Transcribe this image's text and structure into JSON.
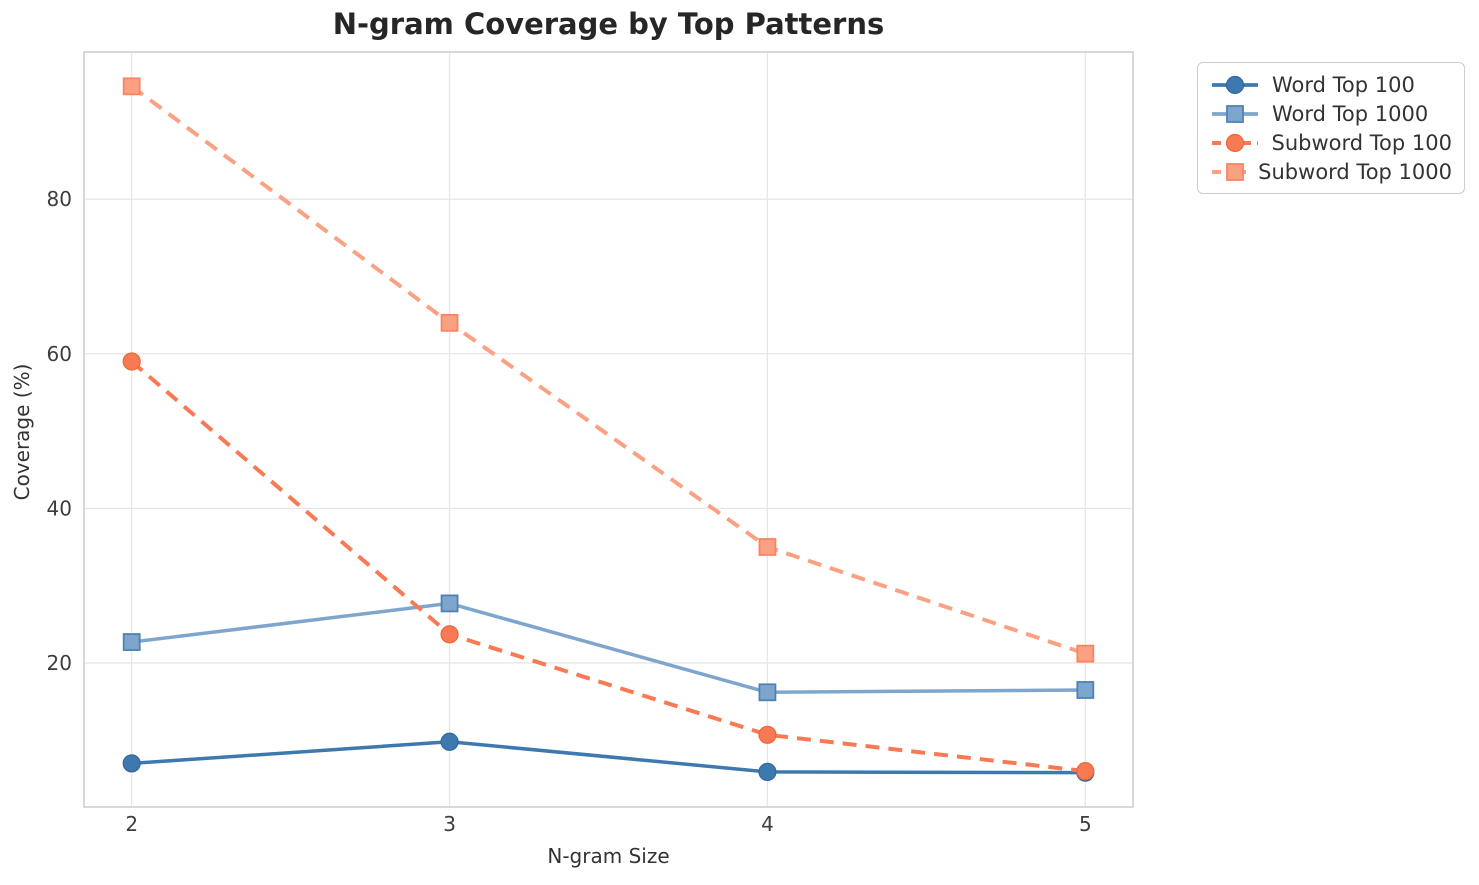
{
  "chart_data": {
    "type": "line",
    "title": "N-gram Coverage by Top Patterns",
    "xlabel": "N-gram Size",
    "ylabel": "Coverage (%)",
    "x": [
      2,
      3,
      4,
      5
    ],
    "x_tick_labels": [
      "2",
      "3",
      "4",
      "5"
    ],
    "y_ticks": [
      20,
      40,
      60,
      80
    ],
    "y_tick_labels": [
      "20",
      "40",
      "60",
      "80"
    ],
    "xlim": [
      1.85,
      5.15
    ],
    "ylim": [
      1.36,
      99.04
    ],
    "grid": true,
    "legend_position": "outside-upper-right",
    "series": [
      {
        "name": "Word Top 100",
        "values": [
          7.0,
          9.8,
          5.9,
          5.8
        ],
        "color": "#3d79ae",
        "marker_edge": "#34689a",
        "line_style": "solid",
        "marker": "circle"
      },
      {
        "name": "Word Top 1000",
        "values": [
          22.7,
          27.7,
          16.2,
          16.5
        ],
        "color": "#7ea6cd",
        "marker_edge": "#4d82b4",
        "line_style": "solid",
        "marker": "square"
      },
      {
        "name": "Subword Top 100",
        "values": [
          59.0,
          23.7,
          10.7,
          6.0
        ],
        "color": "#f87a54",
        "marker_edge": "#ef6536",
        "line_style": "dashed",
        "marker": "circle"
      },
      {
        "name": "Subword Top 1000",
        "values": [
          94.6,
          64.0,
          35.0,
          21.2
        ],
        "color": "#fba183",
        "marker_edge": "#f8855f",
        "line_style": "dashed",
        "marker": "square"
      }
    ],
    "colors": {
      "grid": "#e7e7e7",
      "spine": "#cccccc",
      "tick_text": "#3d3d3d",
      "title_text": "#262626",
      "background": "#ffffff"
    }
  }
}
